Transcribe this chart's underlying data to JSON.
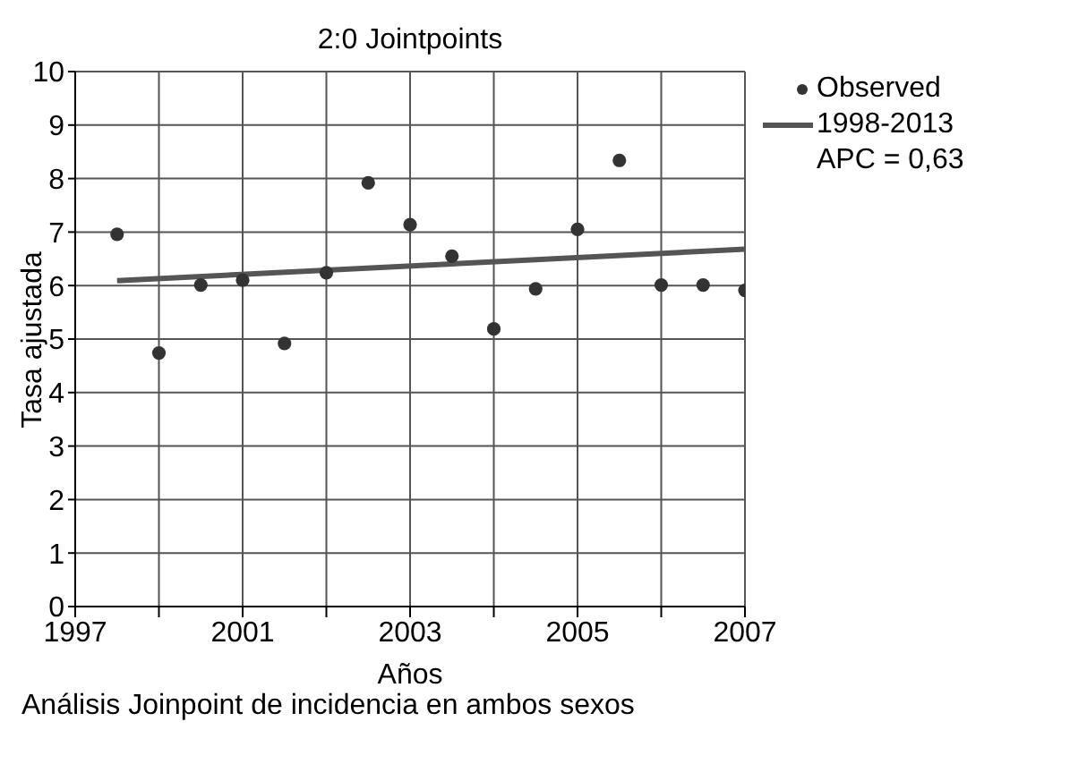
{
  "chart_data": {
    "type": "scatter",
    "title": "2:0 Jointpoints",
    "xlabel": "Años",
    "ylabel": "Tasa ajustada",
    "annotations": [
      "APC = 0,63",
      "Análisis Joinpoint de incidencia en ambos sexos"
    ],
    "categories": [
      "1997",
      null,
      null,
      null,
      "2001",
      null,
      null,
      null,
      "2003",
      null,
      null,
      null,
      "2005",
      null,
      null,
      null,
      "2007"
    ],
    "ylim": [
      0,
      10
    ],
    "yticks": [
      0,
      1,
      2,
      3,
      4,
      5,
      6,
      7,
      8,
      9,
      10
    ],
    "grid": true,
    "legend": "top right",
    "series": [
      {
        "name": "Observed",
        "color": "#333333",
        "marker": "circle",
        "values": [
          null,
          6.96,
          4.74,
          6.01,
          6.1,
          4.92,
          6.24,
          7.92,
          7.14,
          6.55,
          5.19,
          5.94,
          7.05,
          8.34,
          6.01,
          6.01,
          5.91
        ]
      },
      {
        "name": "1998-2013",
        "type": "line",
        "color": "#555555",
        "marker": "none",
        "line_style": "solid",
        "values": [
          null,
          6.09,
          null,
          null,
          null,
          null,
          null,
          null,
          null,
          null,
          null,
          null,
          null,
          null,
          null,
          null,
          6.68
        ]
      }
    ]
  }
}
